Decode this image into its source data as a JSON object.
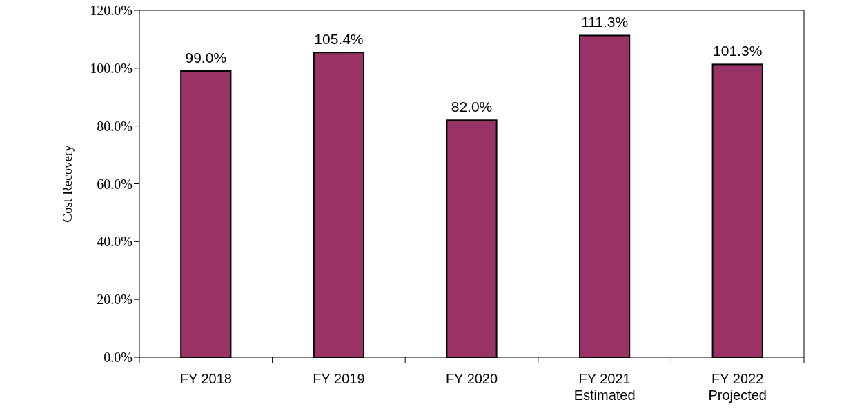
{
  "chart_data": {
    "type": "bar",
    "ylabel": "Cost Recovery",
    "categories": [
      "FY 2018",
      "FY 2019",
      "FY 2020",
      "FY 2021\nEstimated",
      "FY 2022\nProjected"
    ],
    "values": [
      99.0,
      105.4,
      82.0,
      111.3,
      101.3
    ],
    "value_labels": [
      "99.0%",
      "105.4%",
      "82.0%",
      "111.3%",
      "101.3%"
    ],
    "color": "#993366",
    "ylim": [
      0,
      120
    ],
    "yticks": [
      {
        "value": 0,
        "label": "0.0%"
      },
      {
        "value": 20,
        "label": "20.0%"
      },
      {
        "value": 40,
        "label": "40.0%"
      },
      {
        "value": 60,
        "label": "60.0%"
      },
      {
        "value": 80,
        "label": "80.0%"
      },
      {
        "value": 100,
        "label": "100.0%"
      },
      {
        "value": 120,
        "label": "120.0%"
      }
    ],
    "grid": false
  }
}
